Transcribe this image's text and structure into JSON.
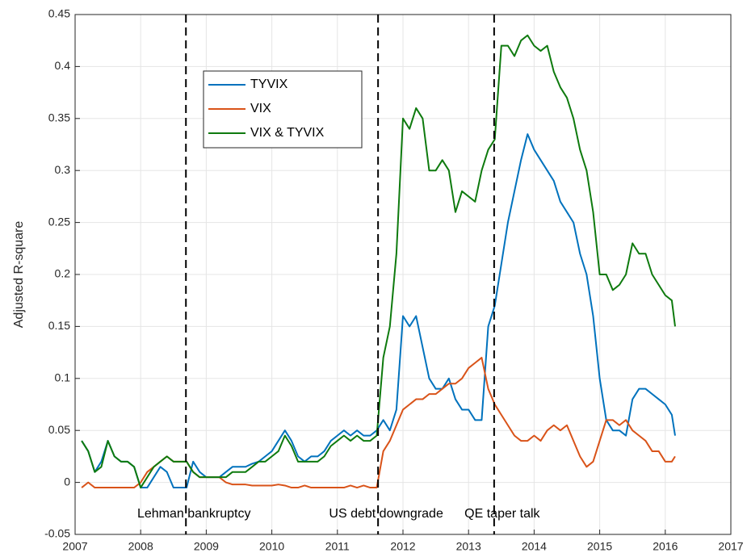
{
  "chart_data": {
    "type": "line",
    "ylabel": "Adjusted R-square",
    "xlim": [
      2007,
      2017
    ],
    "xticks": [
      2007,
      2008,
      2009,
      2010,
      2011,
      2012,
      2013,
      2014,
      2015,
      2016,
      2017
    ],
    "ylim": [
      -0.05,
      0.45
    ],
    "yticks": [
      -0.05,
      0,
      0.05,
      0.1,
      0.15,
      0.2,
      0.25,
      0.3,
      0.35,
      0.4,
      0.45
    ],
    "grid": true,
    "legend": "north-west",
    "x": [
      2007.1,
      2007.2,
      2007.3,
      2007.4,
      2007.5,
      2007.6,
      2007.7,
      2007.8,
      2007.9,
      2008.0,
      2008.1,
      2008.2,
      2008.3,
      2008.4,
      2008.5,
      2008.6,
      2008.7,
      2008.8,
      2008.9,
      2009.0,
      2009.1,
      2009.2,
      2009.3,
      2009.4,
      2009.5,
      2009.6,
      2009.7,
      2009.8,
      2009.9,
      2010.0,
      2010.1,
      2010.2,
      2010.3,
      2010.4,
      2010.5,
      2010.6,
      2010.7,
      2010.8,
      2010.9,
      2011.0,
      2011.1,
      2011.2,
      2011.3,
      2011.4,
      2011.5,
      2011.6,
      2011.7,
      2011.8,
      2011.9,
      2012.0,
      2012.1,
      2012.2,
      2012.3,
      2012.4,
      2012.5,
      2012.6,
      2012.7,
      2012.8,
      2012.9,
      2013.0,
      2013.1,
      2013.2,
      2013.3,
      2013.4,
      2013.5,
      2013.6,
      2013.7,
      2013.8,
      2013.9,
      2014.0,
      2014.1,
      2014.2,
      2014.3,
      2014.4,
      2014.5,
      2014.6,
      2014.7,
      2014.8,
      2014.9,
      2015.0,
      2015.1,
      2015.2,
      2015.3,
      2015.4,
      2015.5,
      2015.6,
      2015.7,
      2015.8,
      2015.9,
      2016.0,
      2016.1,
      2016.15
    ],
    "series": [
      {
        "name": "TYVIX",
        "color": "#0072bd",
        "values": [
          0.04,
          0.03,
          0.01,
          0.02,
          0.04,
          0.025,
          0.02,
          0.02,
          0.015,
          -0.005,
          -0.005,
          0.005,
          0.015,
          0.01,
          -0.005,
          -0.005,
          -0.005,
          0.02,
          0.01,
          0.005,
          0.005,
          0.005,
          0.01,
          0.015,
          0.015,
          0.015,
          0.018,
          0.02,
          0.025,
          0.03,
          0.04,
          0.05,
          0.04,
          0.025,
          0.02,
          0.025,
          0.025,
          0.03,
          0.04,
          0.045,
          0.05,
          0.045,
          0.05,
          0.045,
          0.045,
          0.05,
          0.06,
          0.05,
          0.07,
          0.16,
          0.15,
          0.16,
          0.13,
          0.1,
          0.09,
          0.09,
          0.1,
          0.08,
          0.07,
          0.07,
          0.06,
          0.06,
          0.15,
          0.17,
          0.21,
          0.25,
          0.28,
          0.31,
          0.335,
          0.32,
          0.31,
          0.3,
          0.29,
          0.27,
          0.26,
          0.25,
          0.22,
          0.2,
          0.16,
          0.1,
          0.06,
          0.05,
          0.05,
          0.045,
          0.08,
          0.09,
          0.09,
          0.085,
          0.08,
          0.075,
          0.065,
          0.045
        ]
      },
      {
        "name": "VIX",
        "color": "#d95319",
        "values": [
          -0.005,
          0,
          -0.005,
          -0.005,
          -0.005,
          -0.005,
          -0.005,
          -0.005,
          -0.005,
          0,
          0.01,
          0.015,
          0.02,
          0.025,
          0.02,
          0.02,
          0.02,
          0.01,
          0.005,
          0.005,
          0.005,
          0.005,
          0,
          -0.002,
          -0.002,
          -0.002,
          -0.003,
          -0.003,
          -0.003,
          -0.003,
          -0.002,
          -0.003,
          -0.005,
          -0.005,
          -0.003,
          -0.005,
          -0.005,
          -0.005,
          -0.005,
          -0.005,
          -0.005,
          -0.003,
          -0.005,
          -0.003,
          -0.005,
          -0.005,
          0.03,
          0.04,
          0.055,
          0.07,
          0.075,
          0.08,
          0.08,
          0.085,
          0.085,
          0.09,
          0.095,
          0.095,
          0.1,
          0.11,
          0.115,
          0.12,
          0.09,
          0.075,
          0.065,
          0.055,
          0.045,
          0.04,
          0.04,
          0.045,
          0.04,
          0.05,
          0.055,
          0.05,
          0.055,
          0.04,
          0.025,
          0.015,
          0.02,
          0.04,
          0.06,
          0.06,
          0.055,
          0.06,
          0.05,
          0.045,
          0.04,
          0.03,
          0.03,
          0.02,
          0.02,
          0.025
        ]
      },
      {
        "name": "VIX & TYVIX",
        "color": "#0e7a0e",
        "values": [
          0.04,
          0.03,
          0.01,
          0.015,
          0.04,
          0.025,
          0.02,
          0.02,
          0.015,
          -0.005,
          0.005,
          0.015,
          0.02,
          0.025,
          0.02,
          0.02,
          0.02,
          0.01,
          0.005,
          0.005,
          0.005,
          0.005,
          0.005,
          0.01,
          0.01,
          0.01,
          0.015,
          0.02,
          0.02,
          0.025,
          0.03,
          0.045,
          0.035,
          0.02,
          0.02,
          0.02,
          0.02,
          0.025,
          0.035,
          0.04,
          0.045,
          0.04,
          0.045,
          0.04,
          0.04,
          0.045,
          0.12,
          0.15,
          0.22,
          0.35,
          0.34,
          0.36,
          0.35,
          0.3,
          0.3,
          0.31,
          0.3,
          0.26,
          0.28,
          0.275,
          0.27,
          0.3,
          0.32,
          0.33,
          0.42,
          0.42,
          0.41,
          0.425,
          0.43,
          0.42,
          0.415,
          0.42,
          0.395,
          0.38,
          0.37,
          0.35,
          0.32,
          0.3,
          0.26,
          0.2,
          0.2,
          0.185,
          0.19,
          0.2,
          0.23,
          0.22,
          0.22,
          0.2,
          0.19,
          0.18,
          0.175,
          0.15
        ]
      }
    ],
    "events": [
      {
        "x": 2008.69,
        "label": "Lehman bankruptcy"
      },
      {
        "x": 2011.62,
        "label": "US debt downgrade"
      },
      {
        "x": 2013.39,
        "label": "QE taper talk"
      }
    ]
  }
}
